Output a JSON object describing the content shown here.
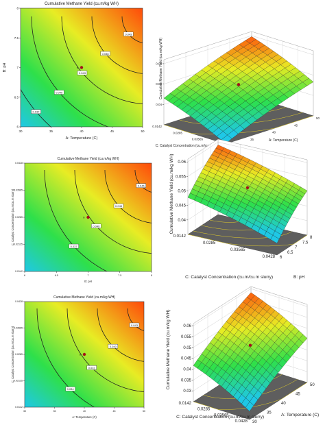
{
  "colors": {
    "low": "#1fc8e6",
    "mid": "#2ee04a",
    "yellow": "#e8ec24",
    "high": "#ff4a0a",
    "point": "#a3121a",
    "floor": "#5e5e5e"
  },
  "chart_data": [
    {
      "type": "heatmap",
      "subtype": "contour",
      "title": "Cumulative Methane Yield (cu.m/kg WH)",
      "xlabel": "A: Temperature (C)",
      "ylabel": "B: pH",
      "xlim": [
        30,
        50
      ],
      "ylim": [
        6,
        8
      ],
      "x_ticks": [
        "30",
        "35",
        "40",
        "45",
        "50"
      ],
      "y_ticks": [
        "6",
        "6.5",
        "7",
        "7.5",
        "8"
      ],
      "contours": [
        {
          "label": "0.037",
          "value": 0.037
        },
        {
          "label": "0.040",
          "value": 0.04
        },
        {
          "label": "0.043",
          "value": 0.043
        },
        {
          "label": "0.046",
          "value": 0.046
        },
        {
          "label": "0.049",
          "value": 0.049
        }
      ],
      "design_point": {
        "x": 40,
        "y": 7,
        "label": "6"
      }
    },
    {
      "type": "surface",
      "title": "",
      "zlabel": "Cumulative Methane Yield (cu.m/kg WH)",
      "xlabel": "A: Temperature (C)",
      "ylabel": "C: Catalyst Concentration (cu.m/cu.m slurry)",
      "z_ticks": [
        "0.04",
        "0.05",
        "0.06"
      ],
      "x_ticks": [
        "30",
        "35",
        "40",
        "45",
        "50"
      ],
      "y_ticks": [
        "0.0142",
        "0.0285",
        "0.03565",
        "0.0428"
      ],
      "zlim": [
        0.03,
        0.06
      ]
    },
    {
      "type": "heatmap",
      "subtype": "contour",
      "title": "Cumulative Methane Yield (cu.m/kg WH)",
      "xlabel": "B: pH",
      "ylabel": "C: Catalyst Concentration (cu.m/cu.m slurry)",
      "xlim": [
        6,
        8
      ],
      "ylim": [
        0.0142,
        0.0428
      ],
      "x_ticks": [
        "6",
        "6.5",
        "7",
        "7.5",
        "8"
      ],
      "y_ticks": [
        "0.0142",
        "0.02135",
        "0.0285",
        "0.03565",
        "0.0428"
      ],
      "contours": [
        {
          "label": "0.037",
          "value": 0.037
        },
        {
          "label": "0.040",
          "value": 0.04
        },
        {
          "label": "0.043",
          "value": 0.043
        },
        {
          "label": "0.046",
          "value": 0.046
        }
      ],
      "design_point": {
        "x": 7,
        "y": 0.0285,
        "label": "6"
      }
    },
    {
      "type": "surface",
      "title": "",
      "zlabel": "Cumulative Methane Yield (cu.m/kg WH)",
      "xlabel": "B: pH",
      "ylabel": "C: Catalyst Concentration (cu.m/cu.m slurry)",
      "z_ticks": [
        "0.04",
        "0.045",
        "0.05",
        "0.055",
        "0.06"
      ],
      "x_ticks": [
        "6",
        "6.5",
        "7",
        "7.5",
        "8"
      ],
      "y_ticks": [
        "0.0142",
        "0.0285",
        "0.03565",
        "0.0428"
      ],
      "zlim": [
        0.035,
        0.06
      ]
    },
    {
      "type": "heatmap",
      "subtype": "contour",
      "title": "Cumulative Methane Yield (cu.m/kg WH)",
      "xlabel": "A: Temperature (C)",
      "ylabel": "C: Catalyst Concentration (cu.m/cu.m slurry)",
      "xlim": [
        30,
        50
      ],
      "ylim": [
        0.0142,
        0.0428
      ],
      "x_ticks": [
        "30",
        "35",
        "40",
        "45",
        "50"
      ],
      "y_ticks": [
        "0.0142",
        "0.02135",
        "0.0285",
        "0.03565",
        "0.0428"
      ],
      "contours": [
        {
          "label": "0.034",
          "value": 0.034
        },
        {
          "label": "0.037",
          "value": 0.037
        },
        {
          "label": "0.040",
          "value": 0.04
        },
        {
          "label": "0.043",
          "value": 0.043
        }
      ],
      "design_point": {
        "x": 40,
        "y": 0.0285,
        "label": "6"
      }
    },
    {
      "type": "surface",
      "title": "",
      "zlabel": "Cumulative Methane Yield (cu.m/kg WH)",
      "xlabel": "A: Temperature (C)",
      "ylabel": "C: Catalyst Concentration (cu.m/cu.m slurry)",
      "z_ticks": [
        "0.03",
        "0.035",
        "0.04",
        "0.045",
        "0.05",
        "0.055",
        "0.06"
      ],
      "x_ticks": [
        "30",
        "35",
        "40",
        "45",
        "50"
      ],
      "y_ticks": [
        "0.0142",
        "0.0285",
        "0.03565",
        "0.0428"
      ],
      "zlim": [
        0.03,
        0.06
      ]
    }
  ]
}
